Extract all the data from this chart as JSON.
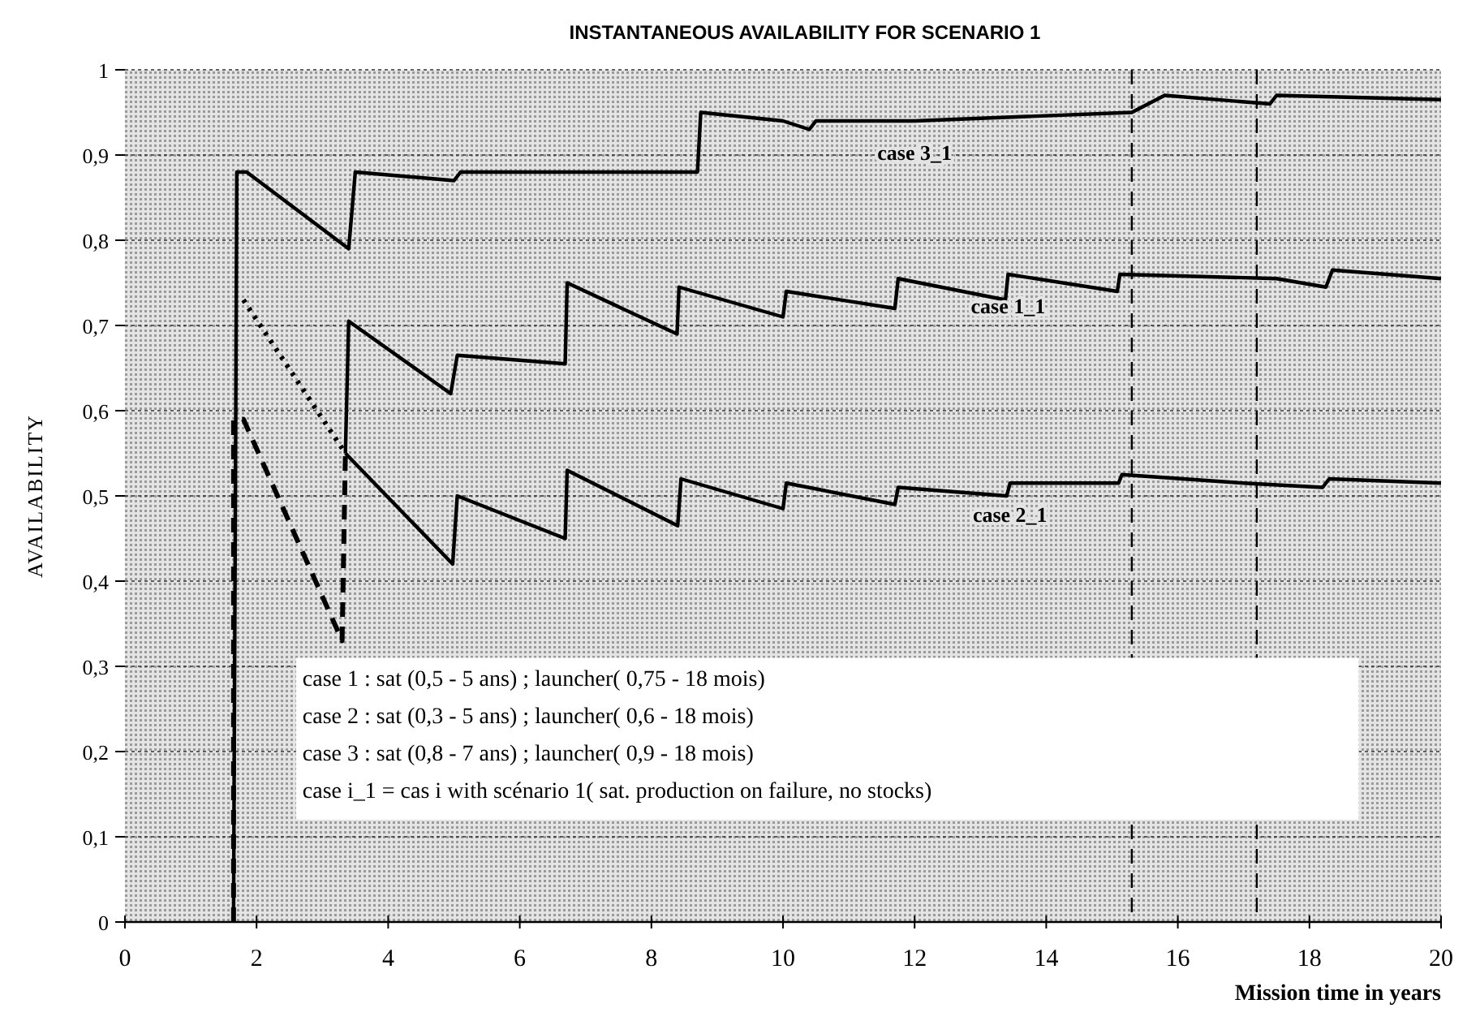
{
  "chart_data": {
    "type": "line",
    "title": "INSTANTANEOUS AVAILABILITY FOR SCENARIO 1",
    "xlabel": "Mission time in years",
    "ylabel": "AVAILABILITY",
    "xlim": [
      0,
      20
    ],
    "xticks": [
      0,
      2,
      4,
      6,
      8,
      10,
      12,
      14,
      16,
      18,
      20
    ],
    "ylim": [
      0,
      1
    ],
    "yticks": [
      0,
      {
        "value": 0.1,
        "label": "0,1"
      },
      {
        "value": 0.2,
        "label": "0,2"
      },
      {
        "value": 0.3,
        "label": "0,3"
      },
      {
        "value": 0.4,
        "label": "0,4"
      },
      {
        "value": 0.5,
        "label": "0,5"
      },
      {
        "value": 0.6,
        "label": "0,6"
      },
      {
        "value": 0.7,
        "label": "0,7"
      },
      {
        "value": 0.8,
        "label": "0,8"
      },
      {
        "value": 0.9,
        "label": "0,9"
      },
      1
    ],
    "grid": "y",
    "marker": "none",
    "series": [
      {
        "name": "case 3_1",
        "color": "#000000",
        "line_style": "solid",
        "x": [
          1.65,
          1.7,
          1.85,
          3.4,
          3.5,
          5.0,
          5.1,
          8.7,
          8.75,
          10.0,
          10.4,
          10.5,
          12.0,
          15.3,
          15.8,
          17.4,
          17.5,
          20
        ],
        "values": [
          0,
          0.88,
          0.88,
          0.79,
          0.88,
          0.87,
          0.88,
          0.88,
          0.95,
          0.94,
          0.93,
          0.94,
          0.94,
          0.95,
          0.97,
          0.96,
          0.97,
          0.965
        ]
      },
      {
        "color": "#000000",
        "line_style": "dotted",
        "x": [
          1.8,
          3.35
        ],
        "values": [
          0.73,
          0.55
        ]
      },
      {
        "name": "case 1_1",
        "color": "#000000",
        "line_style": "solid",
        "x": [
          3.35,
          3.4,
          4.95,
          5.05,
          6.69,
          6.72,
          8.39,
          8.42,
          10.0,
          10.05,
          11.7,
          11.75,
          13.38,
          13.42,
          15.08,
          15.12,
          17.5,
          18.25,
          18.35,
          20
        ],
        "values": [
          0.55,
          0.705,
          0.62,
          0.665,
          0.655,
          0.75,
          0.69,
          0.745,
          0.71,
          0.74,
          0.72,
          0.755,
          0.73,
          0.76,
          0.74,
          0.76,
          0.755,
          0.745,
          0.765,
          0.755
        ]
      },
      {
        "color": "#000000",
        "line_style": "dashed",
        "x": [
          1.65,
          1.65,
          1.8,
          3.3,
          3.35
        ],
        "values": [
          0,
          0.59,
          0.59,
          0.33,
          0.55
        ]
      },
      {
        "name": "case 2_1",
        "color": "#000000",
        "line_style": "solid",
        "x": [
          3.35,
          4.98,
          5.05,
          6.69,
          6.72,
          8.4,
          8.45,
          10.0,
          10.05,
          11.7,
          11.75,
          13.4,
          13.45,
          15.1,
          15.15,
          17.0,
          18.2,
          18.3,
          20
        ],
        "values": [
          0.55,
          0.42,
          0.5,
          0.45,
          0.53,
          0.465,
          0.52,
          0.485,
          0.515,
          0.49,
          0.51,
          0.5,
          0.515,
          0.515,
          0.525,
          0.515,
          0.51,
          0.52,
          0.515
        ]
      }
    ],
    "ref_lines": [
      {
        "axis": "x",
        "value": 15.3,
        "line_style": "dashed",
        "color": "#000000"
      },
      {
        "axis": "x",
        "value": 17.2,
        "line_style": "dashed",
        "color": "#000000"
      }
    ],
    "annotations": [
      "case 1 : sat (0,5 - 5 ans) ; launcher( 0,75 - 18 mois)",
      "case 2 : sat (0,3 - 5 ans) ; launcher( 0,6   - 18 mois)",
      "case 3 : sat (0,8 - 7 ans) ; launcher( 0,9   - 18 mois)",
      "case i_1 = cas i with scénario 1( sat. production on failure, no stocks)"
    ]
  }
}
